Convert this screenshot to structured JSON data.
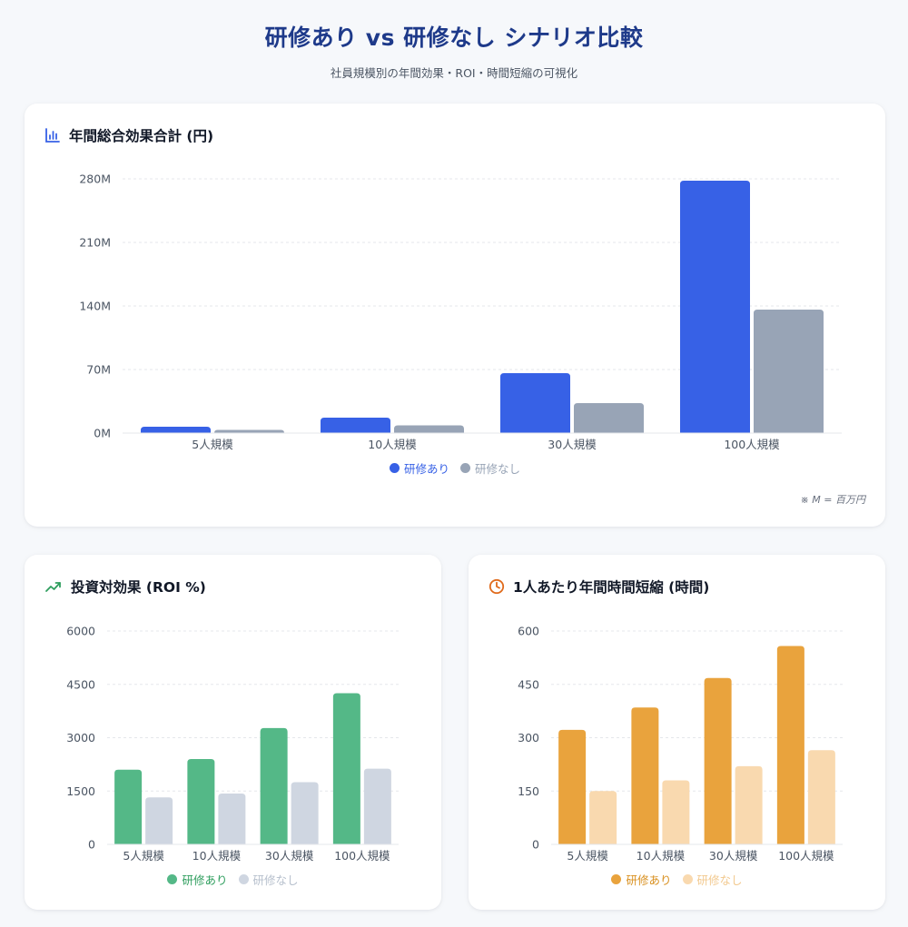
{
  "header": {
    "title": "研修あり vs 研修なし シナリオ比較",
    "subtitle": "社員規模別の年間効果・ROI・時間短縮の可視化"
  },
  "colors": {
    "blue_with": "#3761e6",
    "blue_without": "#98a4b6",
    "green_with": "#54b887",
    "green_without": "#cfd6e1",
    "orange_with": "#e9a33d",
    "orange_without": "#f9d9af"
  },
  "charts": {
    "effect": {
      "title": "年間総合効果合計 (円)",
      "icon": "bar-chart-icon",
      "note": "※ M = 百万円"
    },
    "roi": {
      "title": "投資対効果 (ROI %)",
      "icon": "trending-up-icon"
    },
    "time": {
      "title": "1人あたり年間時間短縮 (時間)",
      "icon": "clock-icon"
    }
  },
  "chart_data": [
    {
      "id": "effect",
      "type": "bar",
      "title": "年間総合効果合計 (円)",
      "categories": [
        "5人規模",
        "10人規模",
        "30人規模",
        "100人規模"
      ],
      "series": [
        {
          "name": "研修あり",
          "values": [
            7,
            17,
            66,
            278
          ]
        },
        {
          "name": "研修なし",
          "values": [
            3.5,
            8.5,
            33,
            136
          ]
        }
      ],
      "ylim": [
        0,
        280
      ],
      "yticks": [
        0,
        70,
        140,
        210,
        280
      ],
      "ytick_labels": [
        "0M",
        "70M",
        "140M",
        "210M",
        "280M"
      ],
      "legend": "bottom"
    },
    {
      "id": "roi",
      "type": "bar",
      "title": "投資対効果 (ROI %)",
      "categories": [
        "5人規模",
        "10人規模",
        "30人規模",
        "100人規模"
      ],
      "series": [
        {
          "name": "研修あり",
          "values": [
            2100,
            2400,
            3270,
            4250
          ]
        },
        {
          "name": "研修なし",
          "values": [
            1320,
            1430,
            1750,
            2130
          ]
        }
      ],
      "ylim": [
        0,
        6000
      ],
      "yticks": [
        0,
        1500,
        3000,
        4500,
        6000
      ],
      "ytick_labels": [
        "0",
        "1500",
        "3000",
        "4500",
        "6000"
      ],
      "legend": "bottom"
    },
    {
      "id": "time",
      "type": "bar",
      "title": "1人あたり年間時間短縮 (時間)",
      "categories": [
        "5人規模",
        "10人規模",
        "30人規模",
        "100人規模"
      ],
      "series": [
        {
          "name": "研修あり",
          "values": [
            322,
            385,
            468,
            558
          ]
        },
        {
          "name": "研修なし",
          "values": [
            150,
            180,
            220,
            265
          ]
        }
      ],
      "ylim": [
        0,
        600
      ],
      "yticks": [
        0,
        150,
        300,
        450,
        600
      ],
      "ytick_labels": [
        "0",
        "150",
        "300",
        "450",
        "600"
      ],
      "legend": "bottom"
    }
  ]
}
